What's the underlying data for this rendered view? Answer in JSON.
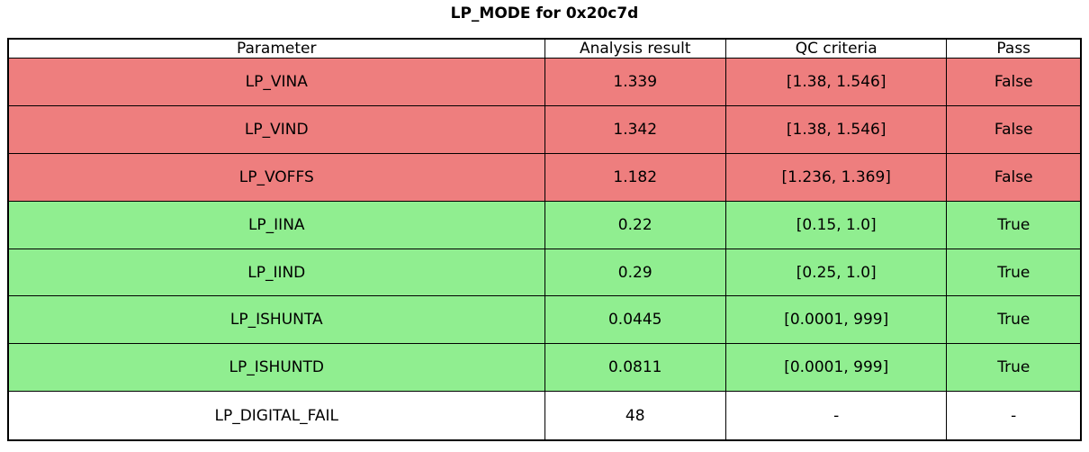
{
  "chart_data": {
    "type": "table",
    "title": "LP_MODE for 0x20c7d",
    "columns": [
      "Parameter",
      "Analysis result",
      "QC criteria",
      "Pass"
    ],
    "rows": [
      [
        "LP_VINA",
        "1.339",
        "[1.38, 1.546]",
        "False"
      ],
      [
        "LP_VIND",
        "1.342",
        "[1.38, 1.546]",
        "False"
      ],
      [
        "LP_VOFFS",
        "1.182",
        "[1.236, 1.369]",
        "False"
      ],
      [
        "LP_IINA",
        "0.22",
        "[0.15, 1.0]",
        "True"
      ],
      [
        "LP_IIND",
        "0.29",
        "[0.25, 1.0]",
        "True"
      ],
      [
        "LP_ISHUNTA",
        "0.0445",
        "[0.0001, 999]",
        "True"
      ],
      [
        "LP_ISHUNTD",
        "0.0811",
        "[0.0001, 999]",
        "True"
      ],
      [
        "LP_DIGITAL_FAIL",
        "48",
        "-",
        "-"
      ]
    ],
    "row_status": [
      "fail",
      "fail",
      "fail",
      "pass",
      "pass",
      "pass",
      "pass",
      "neutral"
    ],
    "colors": {
      "fail_row": "#ee7e7e",
      "pass_row": "#90ee90",
      "neutral_row": "#ffffff",
      "border": "#000000"
    },
    "layout": {
      "header_background": "#ffffff",
      "grid": "on",
      "column_width_pct": [
        50.0,
        16.9,
        20.6,
        12.5
      ]
    }
  }
}
